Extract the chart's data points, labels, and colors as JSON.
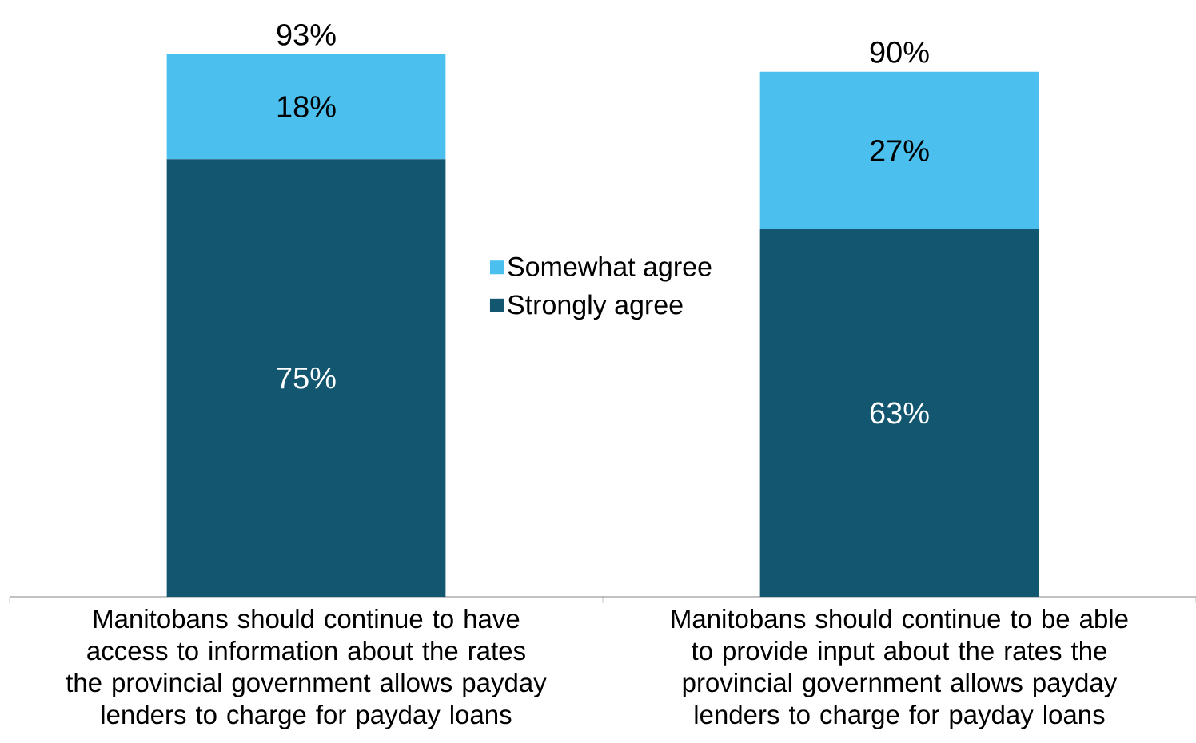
{
  "chart_data": {
    "type": "bar",
    "stacked": true,
    "legend": "center",
    "categories": [
      "Manitobans should continue to have access to information about the rates the provincial government allows payday lenders to charge for payday loans",
      "Manitobans should continue to be able to provide input about the rates the provincial government allows payday lenders to charge for payday loans"
    ],
    "series": [
      {
        "name": "Strongly agree",
        "color": "#12566f",
        "values": [
          75,
          63
        ],
        "value_labels": [
          "75%",
          "63%"
        ]
      },
      {
        "name": "Somewhat agree",
        "color": "#4bc0ee",
        "values": [
          18,
          27
        ],
        "value_labels": [
          "18%",
          "27%"
        ]
      }
    ],
    "totals": [
      "93%",
      "90%"
    ]
  }
}
